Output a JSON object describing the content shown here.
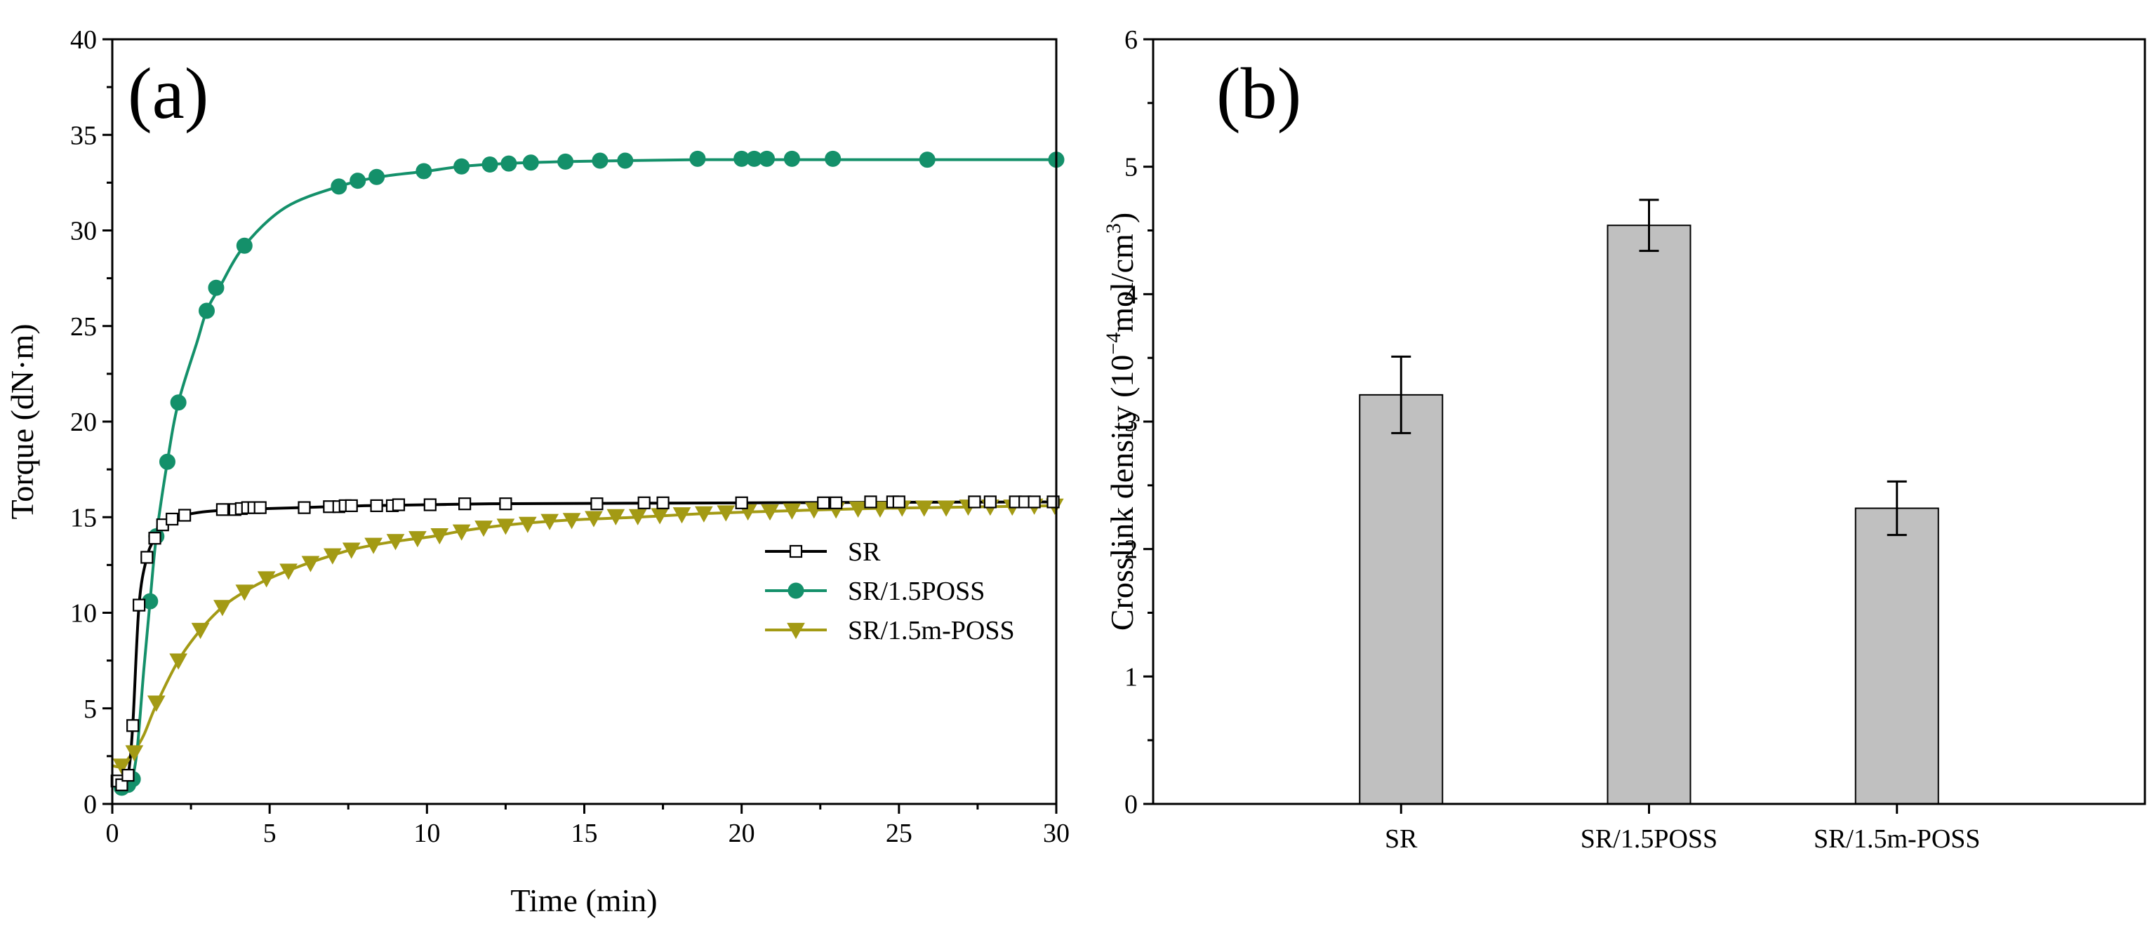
{
  "colors": {
    "sr": "#000000",
    "poss": "#14906a",
    "mposs": "#a39a14",
    "bar_fill": "#c0c0c0",
    "axis": "#000000"
  },
  "chart_data": [
    {
      "type": "line",
      "panel_label": "(a)",
      "title": "",
      "xlabel": "Time (min)",
      "ylabel": "Torque (dN·m)",
      "xlim": [
        0,
        30
      ],
      "ylim": [
        0,
        40
      ],
      "xticks": [
        0,
        5,
        10,
        15,
        20,
        25,
        30
      ],
      "xtick_labels": [
        "0",
        "5",
        "10",
        "15",
        "20",
        "25",
        "30"
      ],
      "yticks": [
        0,
        5,
        10,
        15,
        20,
        25,
        30,
        35,
        40
      ],
      "ytick_labels": [
        "0",
        "5",
        "10",
        "15",
        "20",
        "25",
        "30",
        "35",
        "40"
      ],
      "legend_position": "center-right",
      "series": [
        {
          "name": "SR",
          "marker": "open-square",
          "color_key": "sr",
          "line": [
            [
              0,
              1.2
            ],
            [
              0.3,
              1.0
            ],
            [
              0.5,
              1.5
            ],
            [
              0.65,
              4.1
            ],
            [
              0.85,
              10.4
            ],
            [
              1.1,
              12.9
            ],
            [
              1.35,
              13.9
            ],
            [
              1.6,
              14.6
            ],
            [
              1.9,
              14.95
            ],
            [
              2.4,
              15.15
            ],
            [
              3.0,
              15.3
            ],
            [
              4.0,
              15.4
            ],
            [
              6,
              15.5
            ],
            [
              8,
              15.6
            ],
            [
              10,
              15.65
            ],
            [
              12,
              15.7
            ],
            [
              15,
              15.72
            ],
            [
              20,
              15.75
            ],
            [
              25,
              15.78
            ],
            [
              30,
              15.8
            ]
          ],
          "markers": [
            [
              0.15,
              1.2
            ],
            [
              0.3,
              1.0
            ],
            [
              0.5,
              1.5
            ],
            [
              0.65,
              4.1
            ],
            [
              0.85,
              10.4
            ],
            [
              1.1,
              12.9
            ],
            [
              1.35,
              13.9
            ],
            [
              1.6,
              14.6
            ],
            [
              1.9,
              14.9
            ],
            [
              2.3,
              15.1
            ],
            [
              3.5,
              15.4
            ],
            [
              3.9,
              15.4
            ],
            [
              4.1,
              15.45
            ],
            [
              4.3,
              15.5
            ],
            [
              4.5,
              15.5
            ],
            [
              4.7,
              15.5
            ],
            [
              6.1,
              15.5
            ],
            [
              6.9,
              15.55
            ],
            [
              7.2,
              15.55
            ],
            [
              7.4,
              15.6
            ],
            [
              7.6,
              15.6
            ],
            [
              8.4,
              15.6
            ],
            [
              8.9,
              15.6
            ],
            [
              9.1,
              15.65
            ],
            [
              10.1,
              15.65
            ],
            [
              11.2,
              15.7
            ],
            [
              12.5,
              15.7
            ],
            [
              15.4,
              15.7
            ],
            [
              16.9,
              15.75
            ],
            [
              17.5,
              15.75
            ],
            [
              20.0,
              15.75
            ],
            [
              22.6,
              15.75
            ],
            [
              23.0,
              15.75
            ],
            [
              24.1,
              15.8
            ],
            [
              24.8,
              15.8
            ],
            [
              25.0,
              15.8
            ],
            [
              27.4,
              15.8
            ],
            [
              27.9,
              15.8
            ],
            [
              28.7,
              15.8
            ],
            [
              29.0,
              15.8
            ],
            [
              29.3,
              15.8
            ],
            [
              29.9,
              15.8
            ]
          ]
        },
        {
          "name": "SR/1.5POSS",
          "marker": "filled-circle",
          "color_key": "poss",
          "line": [
            [
              0,
              1.0
            ],
            [
              0.3,
              0.85
            ],
            [
              0.5,
              1.0
            ],
            [
              0.65,
              1.4
            ],
            [
              0.8,
              3.0
            ],
            [
              1.0,
              7.0
            ],
            [
              1.2,
              10.6
            ],
            [
              1.4,
              14.0
            ],
            [
              1.75,
              17.9
            ],
            [
              2.1,
              21.0
            ],
            [
              2.7,
              24.2
            ],
            [
              3.0,
              25.8
            ],
            [
              3.4,
              27.0
            ],
            [
              4.2,
              29.2
            ],
            [
              5.5,
              31.2
            ],
            [
              7.2,
              32.3
            ],
            [
              8.5,
              32.8
            ],
            [
              10,
              33.1
            ],
            [
              11.1,
              33.35
            ],
            [
              12.5,
              33.5
            ],
            [
              14.4,
              33.6
            ],
            [
              16.3,
              33.65
            ],
            [
              18.6,
              33.7
            ],
            [
              20,
              33.7
            ],
            [
              23,
              33.7
            ],
            [
              26,
              33.7
            ],
            [
              30,
              33.7
            ]
          ],
          "markers": [
            [
              0.3,
              0.85
            ],
            [
              0.5,
              1.0
            ],
            [
              0.65,
              1.3
            ],
            [
              1.2,
              10.6
            ],
            [
              1.4,
              14.0
            ],
            [
              1.75,
              17.9
            ],
            [
              2.1,
              21.0
            ],
            [
              3.0,
              25.8
            ],
            [
              3.3,
              27.0
            ],
            [
              4.2,
              29.2
            ],
            [
              7.2,
              32.3
            ],
            [
              7.8,
              32.6
            ],
            [
              8.4,
              32.8
            ],
            [
              9.9,
              33.1
            ],
            [
              11.1,
              33.35
            ],
            [
              12.0,
              33.45
            ],
            [
              12.6,
              33.5
            ],
            [
              13.3,
              33.55
            ],
            [
              14.4,
              33.6
            ],
            [
              15.5,
              33.65
            ],
            [
              16.3,
              33.65
            ],
            [
              18.6,
              33.75
            ],
            [
              20.0,
              33.75
            ],
            [
              20.4,
              33.75
            ],
            [
              20.8,
              33.75
            ],
            [
              21.6,
              33.75
            ],
            [
              22.9,
              33.75
            ],
            [
              25.9,
              33.7
            ],
            [
              30.0,
              33.7
            ]
          ]
        },
        {
          "name": "SR/1.5m-POSS",
          "marker": "filled-down-triangle",
          "color_key": "mposs",
          "line": [
            [
              0,
              2.0
            ],
            [
              0.3,
              2.0
            ],
            [
              0.7,
              2.8
            ],
            [
              1.0,
              3.6
            ],
            [
              1.4,
              5.2
            ],
            [
              2.1,
              7.5
            ],
            [
              2.8,
              9.1
            ],
            [
              3.5,
              10.3
            ],
            [
              4.2,
              11.1
            ],
            [
              5.0,
              11.8
            ],
            [
              5.9,
              12.4
            ],
            [
              6.6,
              12.8
            ],
            [
              7.6,
              13.3
            ],
            [
              8.5,
              13.6
            ],
            [
              9.3,
              13.8
            ],
            [
              10.2,
              14.0
            ],
            [
              11.2,
              14.3
            ],
            [
              12.6,
              14.6
            ],
            [
              14.5,
              14.85
            ],
            [
              16.7,
              15.0
            ],
            [
              19.0,
              15.2
            ],
            [
              21.8,
              15.35
            ],
            [
              24.0,
              15.45
            ],
            [
              26.0,
              15.5
            ],
            [
              28.0,
              15.55
            ],
            [
              30,
              15.6
            ]
          ],
          "markers": [
            [
              0.3,
              2.0
            ],
            [
              0.7,
              2.7
            ],
            [
              1.4,
              5.3
            ],
            [
              2.1,
              7.5
            ],
            [
              2.8,
              9.1
            ],
            [
              3.5,
              10.3
            ],
            [
              4.2,
              11.1
            ],
            [
              4.9,
              11.8
            ],
            [
              5.6,
              12.2
            ],
            [
              6.3,
              12.6
            ],
            [
              7.0,
              13.0
            ],
            [
              7.6,
              13.3
            ],
            [
              8.3,
              13.55
            ],
            [
              9.0,
              13.75
            ],
            [
              9.7,
              13.9
            ],
            [
              10.4,
              14.05
            ],
            [
              11.1,
              14.25
            ],
            [
              11.8,
              14.45
            ],
            [
              12.5,
              14.55
            ],
            [
              13.2,
              14.65
            ],
            [
              13.9,
              14.8
            ],
            [
              14.6,
              14.85
            ],
            [
              15.3,
              14.95
            ],
            [
              16.0,
              15.05
            ],
            [
              16.7,
              15.05
            ],
            [
              17.4,
              15.1
            ],
            [
              18.1,
              15.15
            ],
            [
              18.8,
              15.2
            ],
            [
              19.5,
              15.25
            ],
            [
              20.2,
              15.3
            ],
            [
              20.9,
              15.3
            ],
            [
              21.6,
              15.35
            ],
            [
              22.3,
              15.4
            ],
            [
              23.0,
              15.4
            ],
            [
              23.7,
              15.45
            ],
            [
              24.4,
              15.45
            ],
            [
              25.1,
              15.5
            ],
            [
              25.8,
              15.5
            ],
            [
              26.5,
              15.5
            ],
            [
              27.2,
              15.55
            ],
            [
              27.9,
              15.55
            ],
            [
              28.6,
              15.55
            ],
            [
              29.3,
              15.6
            ],
            [
              29.95,
              15.6
            ]
          ]
        }
      ]
    },
    {
      "type": "bar",
      "panel_label": "(b)",
      "title": "",
      "xlabel": "",
      "ylabel": "Crosslink density (10",
      "ylabel_sup": "−4",
      "ylabel_mid": "mol/cm",
      "ylabel_sup2": "3",
      "ylabel_end": ")",
      "ylim": [
        0,
        6
      ],
      "yticks": [
        0,
        1,
        2,
        3,
        4,
        5,
        6
      ],
      "ytick_labels": [
        "0",
        "1",
        "2",
        "3",
        "4",
        "5",
        "6"
      ],
      "categories": [
        "SR",
        "SR/1.5POSS",
        "SR/1.5m-POSS"
      ],
      "values": [
        3.21,
        4.54,
        2.32
      ],
      "errors": [
        0.3,
        0.2,
        0.21
      ]
    }
  ]
}
